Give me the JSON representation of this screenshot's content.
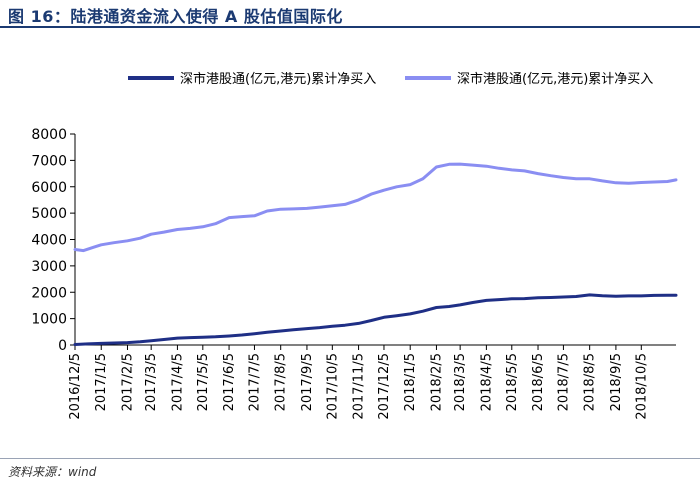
{
  "page": {
    "title": "图 16：陆港通资金流入使得 A 股估值国际化",
    "source": "资料来源：wind"
  },
  "chart_data": {
    "type": "line",
    "title": "",
    "xlabel": "",
    "ylabel": "",
    "ylim": [
      0,
      8000
    ],
    "yticks": [
      0,
      1000,
      2000,
      3000,
      4000,
      5000,
      6000,
      7000,
      8000
    ],
    "xlim": [
      "2016-12-05",
      "2018-11-15"
    ],
    "xtick_labels": [
      "2016/12/5",
      "2017/1/5",
      "2017/2/5",
      "2017/3/5",
      "2017/4/5",
      "2017/5/5",
      "2017/6/5",
      "2017/7/5",
      "2017/8/5",
      "2017/9/5",
      "2017/10/5",
      "2017/11/5",
      "2017/12/5",
      "2018/1/5",
      "2018/2/5",
      "2018/3/5",
      "2018/4/5",
      "2018/5/5",
      "2018/6/5",
      "2018/7/5",
      "2018/8/5",
      "2018/9/5",
      "2018/10/5"
    ],
    "xtick_dates": [
      "2016-12-05",
      "2017-01-05",
      "2017-02-05",
      "2017-03-05",
      "2017-04-05",
      "2017-05-05",
      "2017-06-05",
      "2017-07-05",
      "2017-08-05",
      "2017-09-05",
      "2017-10-05",
      "2017-11-05",
      "2017-12-05",
      "2018-01-05",
      "2018-02-05",
      "2018-03-05",
      "2018-04-05",
      "2018-05-05",
      "2018-06-05",
      "2018-07-05",
      "2018-08-05",
      "2018-09-05",
      "2018-10-05"
    ],
    "grid": false,
    "legend_position": "top",
    "series": [
      {
        "name": "深市港股通(亿元,港元)累计净买入",
        "color": "#1f2f86",
        "points": [
          [
            "2016-12-05",
            20
          ],
          [
            "2016-12-20",
            40
          ],
          [
            "2017-01-05",
            60
          ],
          [
            "2017-01-20",
            75
          ],
          [
            "2017-02-05",
            90
          ],
          [
            "2017-02-20",
            120
          ],
          [
            "2017-03-05",
            160
          ],
          [
            "2017-03-20",
            210
          ],
          [
            "2017-04-05",
            260
          ],
          [
            "2017-04-20",
            280
          ],
          [
            "2017-05-05",
            295
          ],
          [
            "2017-05-20",
            310
          ],
          [
            "2017-06-05",
            340
          ],
          [
            "2017-06-20",
            380
          ],
          [
            "2017-07-05",
            430
          ],
          [
            "2017-07-20",
            480
          ],
          [
            "2017-08-05",
            530
          ],
          [
            "2017-08-20",
            580
          ],
          [
            "2017-09-05",
            620
          ],
          [
            "2017-09-20",
            660
          ],
          [
            "2017-10-05",
            710
          ],
          [
            "2017-10-20",
            750
          ],
          [
            "2017-11-05",
            820
          ],
          [
            "2017-11-20",
            930
          ],
          [
            "2017-12-05",
            1050
          ],
          [
            "2017-12-20",
            1110
          ],
          [
            "2018-01-05",
            1180
          ],
          [
            "2018-01-20",
            1280
          ],
          [
            "2018-02-05",
            1420
          ],
          [
            "2018-02-20",
            1460
          ],
          [
            "2018-03-05",
            1520
          ],
          [
            "2018-03-20",
            1610
          ],
          [
            "2018-04-05",
            1690
          ],
          [
            "2018-04-20",
            1720
          ],
          [
            "2018-05-05",
            1750
          ],
          [
            "2018-05-20",
            1760
          ],
          [
            "2018-06-05",
            1790
          ],
          [
            "2018-06-20",
            1800
          ],
          [
            "2018-07-05",
            1820
          ],
          [
            "2018-07-20",
            1840
          ],
          [
            "2018-08-05",
            1900
          ],
          [
            "2018-08-20",
            1870
          ],
          [
            "2018-09-05",
            1850
          ],
          [
            "2018-09-20",
            1860
          ],
          [
            "2018-10-05",
            1860
          ],
          [
            "2018-10-20",
            1880
          ],
          [
            "2018-11-05",
            1890
          ],
          [
            "2018-11-15",
            1890
          ]
        ]
      },
      {
        "name": "深市港股通(亿元,港元)累计净买入",
        "color": "#8a8ef2",
        "points": [
          [
            "2016-12-05",
            3620
          ],
          [
            "2016-12-15",
            3580
          ],
          [
            "2016-12-28",
            3720
          ],
          [
            "2017-01-05",
            3800
          ],
          [
            "2017-01-20",
            3880
          ],
          [
            "2017-02-05",
            3950
          ],
          [
            "2017-02-20",
            4050
          ],
          [
            "2017-03-05",
            4200
          ],
          [
            "2017-03-20",
            4280
          ],
          [
            "2017-04-05",
            4380
          ],
          [
            "2017-04-20",
            4420
          ],
          [
            "2017-05-05",
            4480
          ],
          [
            "2017-05-20",
            4600
          ],
          [
            "2017-06-05",
            4830
          ],
          [
            "2017-06-20",
            4870
          ],
          [
            "2017-07-05",
            4900
          ],
          [
            "2017-07-20",
            5080
          ],
          [
            "2017-08-05",
            5150
          ],
          [
            "2017-08-20",
            5160
          ],
          [
            "2017-09-05",
            5180
          ],
          [
            "2017-09-20",
            5230
          ],
          [
            "2017-10-05",
            5280
          ],
          [
            "2017-10-20",
            5330
          ],
          [
            "2017-11-05",
            5500
          ],
          [
            "2017-11-20",
            5720
          ],
          [
            "2017-12-05",
            5870
          ],
          [
            "2017-12-20",
            6000
          ],
          [
            "2018-01-05",
            6080
          ],
          [
            "2018-01-20",
            6300
          ],
          [
            "2018-02-05",
            6750
          ],
          [
            "2018-02-20",
            6850
          ],
          [
            "2018-03-05",
            6860
          ],
          [
            "2018-03-20",
            6820
          ],
          [
            "2018-04-05",
            6780
          ],
          [
            "2018-04-20",
            6700
          ],
          [
            "2018-05-05",
            6640
          ],
          [
            "2018-05-20",
            6600
          ],
          [
            "2018-06-05",
            6500
          ],
          [
            "2018-06-20",
            6420
          ],
          [
            "2018-07-05",
            6350
          ],
          [
            "2018-07-20",
            6300
          ],
          [
            "2018-08-05",
            6300
          ],
          [
            "2018-08-20",
            6220
          ],
          [
            "2018-09-05",
            6150
          ],
          [
            "2018-09-20",
            6130
          ],
          [
            "2018-10-05",
            6160
          ],
          [
            "2018-10-20",
            6180
          ],
          [
            "2018-11-05",
            6200
          ],
          [
            "2018-11-15",
            6260
          ]
        ]
      }
    ]
  }
}
